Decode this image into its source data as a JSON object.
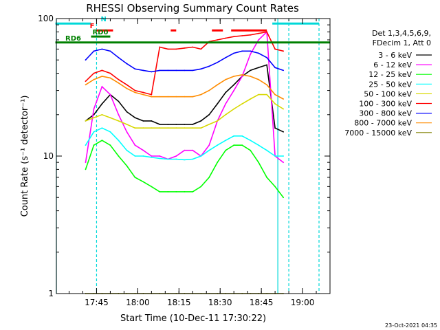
{
  "chart_data": {
    "type": "line",
    "title": "RHESSI Observing Summary Count Rates",
    "xlabel": "Start Time (10-Dec-11 17:30:22)",
    "ylabel": "Count Rate (s⁻¹ detector⁻¹)",
    "y_scale": "log",
    "ylim": [
      1,
      100
    ],
    "xlim": [
      "17:30:22",
      "19:10:00"
    ],
    "y_ticks": [
      "1",
      "10",
      "100"
    ],
    "x_ticks": [
      "17:45",
      "18:00",
      "18:15",
      "18:30",
      "18:45",
      "19:00"
    ],
    "legend_header": [
      "Det 1,3,4,5,6,9,",
      "FDecim 1, Att 0"
    ],
    "legend_position": "right",
    "footer_date": "23-Oct-2021 04:35",
    "markers": [
      {
        "label": "N",
        "color": "#00d8d8",
        "x": [
          "17:30",
          "17:43"
        ],
        "y": 92
      },
      {
        "label": "N",
        "color": "#00d8d8",
        "x": [
          "18:49",
          "19:06"
        ],
        "y": 92
      },
      {
        "label": "F",
        "color": "#ff0000",
        "x": [
          "17:45",
          "17:51"
        ],
        "y": 82
      },
      {
        "label": "F",
        "color": "#ff0000",
        "x": [
          "18:12",
          "18:14"
        ],
        "y": 82
      },
      {
        "label": "F",
        "color": "#ff0000",
        "x": [
          "18:27",
          "18:31"
        ],
        "y": 82
      },
      {
        "label": "F",
        "color": "#ff0000",
        "x": [
          "18:34",
          "18:47"
        ],
        "y": 82
      },
      {
        "label": "RD0",
        "color": "#008000",
        "x": [
          "17:43",
          "17:50"
        ],
        "y": 74
      },
      {
        "label": "RD6",
        "color": "#008000",
        "x": [
          "17:30",
          "19:10"
        ],
        "y": 67
      }
    ],
    "verticals": [
      {
        "color": "#00d8d8",
        "style": "solid",
        "x": "17:30:22"
      },
      {
        "color": "#00d8d8",
        "style": "dashed",
        "x": "17:45"
      },
      {
        "color": "#00d8d8",
        "style": "solid",
        "x": "18:51"
      },
      {
        "color": "#00d8d8",
        "style": "dashed",
        "x": "18:55"
      },
      {
        "color": "#00d8d8",
        "style": "dashed",
        "x": "19:06"
      }
    ],
    "x": [
      "17:41",
      "17:44",
      "17:47",
      "17:50",
      "17:53",
      "17:56",
      "17:59",
      "18:02",
      "18:05",
      "18:08",
      "18:11",
      "18:14",
      "18:17",
      "18:20",
      "18:23",
      "18:26",
      "18:29",
      "18:32",
      "18:35",
      "18:38",
      "18:41",
      "18:44",
      "18:47",
      "18:50",
      "18:53"
    ],
    "series": [
      {
        "name": "3 - 6 keV",
        "color": "#000000",
        "values": [
          18,
          20,
          24,
          28,
          25,
          21,
          19,
          18,
          18,
          17,
          17,
          17,
          17,
          17,
          18,
          20,
          24,
          29,
          33,
          38,
          42,
          44,
          46,
          16,
          15
        ]
      },
      {
        "name": "6 - 12 keV",
        "color": "#ff00ff",
        "values": [
          9,
          22,
          32,
          28,
          20,
          15,
          12,
          11,
          10,
          10,
          9.5,
          10,
          11,
          11,
          10,
          12,
          18,
          24,
          30,
          38,
          55,
          70,
          80,
          10,
          9
        ]
      },
      {
        "name": "12 - 25 keV",
        "color": "#00ff00",
        "values": [
          8,
          12,
          13,
          12,
          10,
          8.5,
          7,
          6.5,
          6,
          5.5,
          5.5,
          5.5,
          5.5,
          5.5,
          6,
          7,
          9,
          11,
          12,
          12,
          11,
          9,
          7,
          6,
          5
        ]
      },
      {
        "name": "25 - 50 keV",
        "color": "#00ffff",
        "values": [
          12,
          15,
          16,
          15,
          13,
          11,
          10,
          10,
          9.8,
          9.6,
          9.5,
          9.5,
          9.4,
          9.5,
          10,
          11,
          12,
          13,
          14,
          14,
          13,
          12,
          11,
          10,
          10
        ]
      },
      {
        "name": "50 - 100 keV",
        "color": "#d8d800",
        "values": [
          18,
          19,
          20,
          19,
          18,
          17,
          16,
          16,
          16,
          16,
          16,
          16,
          16,
          16,
          16,
          17,
          18,
          20,
          22,
          24,
          26,
          28,
          28,
          24,
          22
        ]
      },
      {
        "name": "100 - 300 keV",
        "color": "#ff0000",
        "values": [
          35,
          40,
          42,
          40,
          36,
          33,
          30,
          29,
          28,
          62,
          60,
          60,
          61,
          62,
          60,
          68,
          70,
          72,
          74,
          75,
          76,
          78,
          80,
          60,
          58
        ]
      },
      {
        "name": "300 - 800 keV",
        "color": "#0000ff",
        "values": [
          50,
          58,
          60,
          58,
          52,
          47,
          43,
          42,
          41,
          42,
          42,
          42,
          42,
          42,
          43,
          45,
          48,
          52,
          56,
          58,
          58,
          56,
          52,
          44,
          42
        ]
      },
      {
        "name": "800 - 7000 keV",
        "color": "#ff8c00",
        "values": [
          33,
          36,
          38,
          37,
          34,
          31,
          29,
          28,
          27,
          27,
          27,
          27,
          27,
          27,
          28,
          30,
          33,
          36,
          38,
          39,
          38,
          36,
          33,
          28,
          26
        ]
      },
      {
        "name": "7000 - 15000 keV",
        "color": "#808000",
        "values": [
          1,
          1,
          1,
          1,
          1,
          1,
          1,
          1,
          1,
          1,
          1,
          1,
          1,
          1,
          1,
          1,
          1,
          1,
          1,
          1,
          1,
          1,
          1,
          1,
          1
        ]
      }
    ]
  }
}
